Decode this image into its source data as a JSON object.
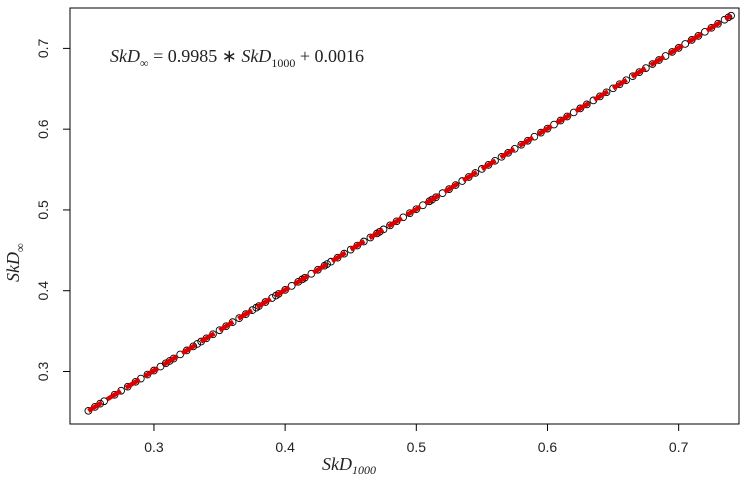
{
  "chart_data": {
    "type": "scatter",
    "xlabel": {
      "main": "SkD",
      "sub": "1000"
    },
    "ylabel": {
      "main": "SkD",
      "sub": "∞"
    },
    "xlim": [
      0.236,
      0.746
    ],
    "ylim": [
      0.235,
      0.75
    ],
    "x_ticks": [
      "0.3",
      "0.4",
      "0.5",
      "0.6",
      "0.7"
    ],
    "y_ticks": [
      "0.3",
      "0.4",
      "0.5",
      "0.6",
      "0.7"
    ],
    "grid": false,
    "annotation": {
      "lhs_main": "SkD",
      "lhs_sub": "∞",
      "equals": " = ",
      "coef": "0.9985",
      "times": " ∗ ",
      "rhs_main": "SkD",
      "rhs_sub": "1000",
      "plus": " + ",
      "intercept": "0.0016"
    },
    "fit_line": {
      "slope": 0.9985,
      "intercept": 0.0016,
      "x_range": [
        0.25,
        0.74
      ],
      "color": "#dd0000"
    },
    "points_color": "#000000",
    "points": [
      [
        0.25,
        0.2513
      ],
      [
        0.255,
        0.2562
      ],
      [
        0.259,
        0.2602
      ],
      [
        0.262,
        0.2632
      ],
      [
        0.27,
        0.2712
      ],
      [
        0.275,
        0.2762
      ],
      [
        0.28,
        0.2812
      ],
      [
        0.286,
        0.2872
      ],
      [
        0.29,
        0.2912
      ],
      [
        0.295,
        0.2962
      ],
      [
        0.3,
        0.3012
      ],
      [
        0.305,
        0.3061
      ],
      [
        0.309,
        0.3101
      ],
      [
        0.312,
        0.3131
      ],
      [
        0.315,
        0.3161
      ],
      [
        0.32,
        0.3211
      ],
      [
        0.325,
        0.3261
      ],
      [
        0.33,
        0.3311
      ],
      [
        0.333,
        0.3341
      ],
      [
        0.336,
        0.3371
      ],
      [
        0.34,
        0.3411
      ],
      [
        0.345,
        0.3461
      ],
      [
        0.35,
        0.3511
      ],
      [
        0.355,
        0.3561
      ],
      [
        0.36,
        0.3611
      ],
      [
        0.365,
        0.3661
      ],
      [
        0.37,
        0.371
      ],
      [
        0.375,
        0.376
      ],
      [
        0.378,
        0.379
      ],
      [
        0.38,
        0.381
      ],
      [
        0.385,
        0.386
      ],
      [
        0.39,
        0.391
      ],
      [
        0.393,
        0.394
      ],
      [
        0.395,
        0.396
      ],
      [
        0.4,
        0.401
      ],
      [
        0.405,
        0.406
      ],
      [
        0.41,
        0.411
      ],
      [
        0.413,
        0.414
      ],
      [
        0.415,
        0.416
      ],
      [
        0.42,
        0.421
      ],
      [
        0.425,
        0.426
      ],
      [
        0.43,
        0.431
      ],
      [
        0.432,
        0.433
      ],
      [
        0.435,
        0.436
      ],
      [
        0.44,
        0.4409
      ],
      [
        0.445,
        0.4459
      ],
      [
        0.45,
        0.4509
      ],
      [
        0.455,
        0.4559
      ],
      [
        0.46,
        0.4609
      ],
      [
        0.465,
        0.4659
      ],
      [
        0.47,
        0.4709
      ],
      [
        0.472,
        0.4729
      ],
      [
        0.475,
        0.4759
      ],
      [
        0.48,
        0.4809
      ],
      [
        0.485,
        0.4859
      ],
      [
        0.49,
        0.4909
      ],
      [
        0.495,
        0.4959
      ],
      [
        0.5,
        0.5009
      ],
      [
        0.505,
        0.5058
      ],
      [
        0.51,
        0.5108
      ],
      [
        0.512,
        0.5128
      ],
      [
        0.515,
        0.5158
      ],
      [
        0.52,
        0.5208
      ],
      [
        0.525,
        0.5258
      ],
      [
        0.53,
        0.5308
      ],
      [
        0.535,
        0.5358
      ],
      [
        0.54,
        0.5408
      ],
      [
        0.545,
        0.5458
      ],
      [
        0.55,
        0.5508
      ],
      [
        0.555,
        0.5558
      ],
      [
        0.56,
        0.5608
      ],
      [
        0.565,
        0.5658
      ],
      [
        0.57,
        0.5707
      ],
      [
        0.575,
        0.5757
      ],
      [
        0.58,
        0.5807
      ],
      [
        0.585,
        0.5857
      ],
      [
        0.59,
        0.5907
      ],
      [
        0.595,
        0.5957
      ],
      [
        0.6,
        0.6007
      ],
      [
        0.605,
        0.6057
      ],
      [
        0.61,
        0.6107
      ],
      [
        0.615,
        0.6157
      ],
      [
        0.62,
        0.6207
      ],
      [
        0.625,
        0.6257
      ],
      [
        0.63,
        0.6307
      ],
      [
        0.635,
        0.6356
      ],
      [
        0.64,
        0.6406
      ],
      [
        0.645,
        0.6456
      ],
      [
        0.65,
        0.6506
      ],
      [
        0.655,
        0.6556
      ],
      [
        0.66,
        0.6606
      ],
      [
        0.665,
        0.6656
      ],
      [
        0.67,
        0.6706
      ],
      [
        0.675,
        0.6756
      ],
      [
        0.68,
        0.6806
      ],
      [
        0.685,
        0.6856
      ],
      [
        0.69,
        0.6906
      ],
      [
        0.695,
        0.6956
      ],
      [
        0.7,
        0.7006
      ],
      [
        0.705,
        0.7055
      ],
      [
        0.71,
        0.7105
      ],
      [
        0.715,
        0.7155
      ],
      [
        0.72,
        0.7205
      ],
      [
        0.725,
        0.7255
      ],
      [
        0.73,
        0.7305
      ],
      [
        0.735,
        0.7355
      ],
      [
        0.738,
        0.7385
      ],
      [
        0.74,
        0.7405
      ]
    ]
  }
}
